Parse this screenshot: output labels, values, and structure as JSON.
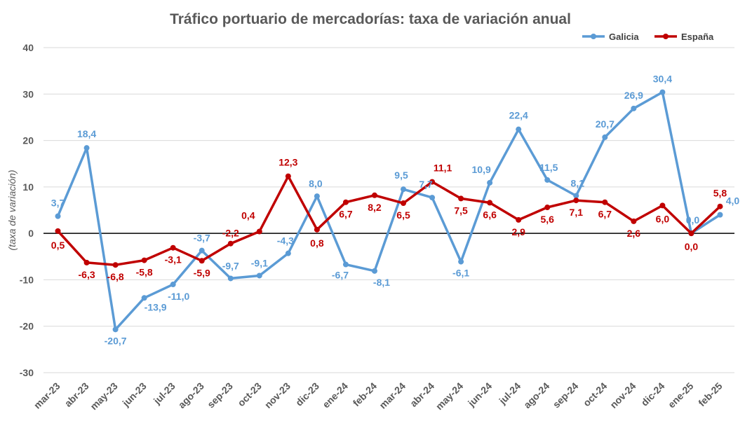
{
  "chart_data": {
    "type": "line",
    "title": "Tráfico portuario de mercadorías: taxa de variación anual",
    "ylabel": "(taxa de variación)",
    "xlabel": "",
    "ylim": [
      -30,
      40
    ],
    "yticks": [
      40,
      30,
      20,
      10,
      0,
      -10,
      -20,
      -30
    ],
    "grid": true,
    "legend_position": "top-right",
    "categories": [
      "mar-23",
      "abr-23",
      "may-23",
      "jun-23",
      "jul-23",
      "ago-23",
      "sep-23",
      "oct-23",
      "nov-23",
      "dic-23",
      "ene-24",
      "feb-24",
      "mar-24",
      "abr-24",
      "may-24",
      "jun-24",
      "jul-24",
      "ago-24",
      "sep-24",
      "oct-24",
      "nov-24",
      "dic-24",
      "ene-25",
      "feb-25"
    ],
    "series": [
      {
        "name": "Galicia",
        "color": "#5B9BD5",
        "values": [
          3.7,
          18.4,
          -20.7,
          -13.9,
          -11.0,
          -3.7,
          -9.7,
          -9.1,
          -4.3,
          8.0,
          -6.7,
          -8.1,
          9.5,
          7.7,
          -6.1,
          10.9,
          22.4,
          11.5,
          8.1,
          20.7,
          26.9,
          30.4,
          0.0,
          4.0
        ],
        "labels": [
          "3,7",
          "18,4",
          "-20,7",
          "-13,9",
          "-11,0",
          "-3,7",
          "-9,7",
          "-9,1",
          "-4,3",
          "8,0",
          "-6,7",
          "-8,1",
          "9,5",
          "7,7",
          "-6,1",
          "10,9",
          "22,4",
          "11,5",
          "8,1",
          "20,7",
          "26,9",
          "30,4",
          "0,0",
          "4,0"
        ]
      },
      {
        "name": "España",
        "color": "#C00000",
        "values": [
          0.5,
          -6.3,
          -6.8,
          -5.8,
          -3.1,
          -5.9,
          -2.2,
          0.4,
          12.3,
          0.8,
          6.7,
          8.2,
          6.5,
          11.1,
          7.5,
          6.6,
          2.9,
          5.6,
          7.1,
          6.7,
          2.6,
          6.0,
          0.0,
          5.8
        ],
        "labels": [
          "0,5",
          "-6,3",
          "-6,8",
          "-5,8",
          "-3,1",
          "-5,9",
          "-2,2",
          "0,4",
          "12,3",
          "0,8",
          "6,7",
          "8,2",
          "6,5",
          "11,1",
          "7,5",
          "6,6",
          "2,9",
          "5,6",
          "7,1",
          "6,7",
          "2,6",
          "6,0",
          "0,0",
          "5,8"
        ]
      }
    ]
  }
}
